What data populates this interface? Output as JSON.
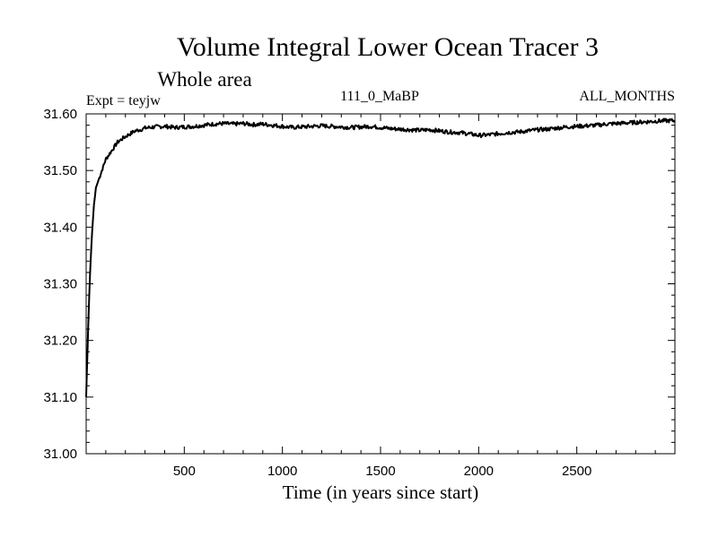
{
  "chart_data": {
    "type": "line",
    "title": "Volume Integral Lower Ocean Tracer 3",
    "subtitle": "Whole area",
    "experiment": "Expt = teyjw",
    "run_label": "111_0_MaBP",
    "months_label": "ALL_MONTHS",
    "xlabel": "Time (in years since start)",
    "ylabel": "",
    "xlim": [
      0,
      3000
    ],
    "ylim": [
      31.0,
      31.6
    ],
    "x_ticks": [
      500,
      1000,
      1500,
      2000,
      2500
    ],
    "x_tick_labels": [
      "500",
      "1000",
      "1500",
      "2000",
      "2500"
    ],
    "y_ticks": [
      31.0,
      31.1,
      31.2,
      31.3,
      31.4,
      31.5,
      31.6
    ],
    "y_tick_labels": [
      "31.00",
      "31.10",
      "31.20",
      "31.30",
      "31.40",
      "31.50",
      "31.60"
    ],
    "line_color": "#000000",
    "series": [
      {
        "name": "Tracer 3",
        "x": [
          0,
          10,
          20,
          30,
          40,
          50,
          60,
          70,
          80,
          90,
          100,
          120,
          140,
          160,
          180,
          200,
          225,
          250,
          275,
          300,
          350,
          400,
          450,
          500,
          550,
          600,
          650,
          700,
          750,
          800,
          850,
          900,
          950,
          1000,
          1050,
          1100,
          1150,
          1200,
          1250,
          1300,
          1350,
          1400,
          1450,
          1500,
          1550,
          1600,
          1650,
          1700,
          1750,
          1800,
          1850,
          1900,
          1950,
          2000,
          2050,
          2100,
          2150,
          2200,
          2250,
          2300,
          2350,
          2400,
          2450,
          2500,
          2550,
          2600,
          2650,
          2700,
          2750,
          2800,
          2850,
          2900,
          2950,
          3000
        ],
        "values": [
          31.1,
          31.22,
          31.32,
          31.39,
          31.44,
          31.47,
          31.48,
          31.49,
          31.5,
          31.51,
          31.52,
          31.53,
          31.54,
          31.55,
          31.555,
          31.56,
          31.565,
          31.57,
          31.572,
          31.575,
          31.577,
          31.578,
          31.576,
          31.577,
          31.578,
          31.58,
          31.582,
          31.583,
          31.582,
          31.583,
          31.581,
          31.582,
          31.58,
          31.578,
          31.576,
          31.577,
          31.578,
          31.579,
          31.578,
          31.577,
          31.576,
          31.577,
          31.578,
          31.576,
          31.574,
          31.573,
          31.572,
          31.571,
          31.572,
          31.57,
          31.568,
          31.567,
          31.565,
          31.562,
          31.563,
          31.565,
          31.567,
          31.568,
          31.57,
          31.572,
          31.573,
          31.575,
          31.577,
          31.578,
          31.579,
          31.58,
          31.582,
          31.583,
          31.584,
          31.585,
          31.586,
          31.587,
          31.588,
          31.588
        ]
      }
    ]
  }
}
